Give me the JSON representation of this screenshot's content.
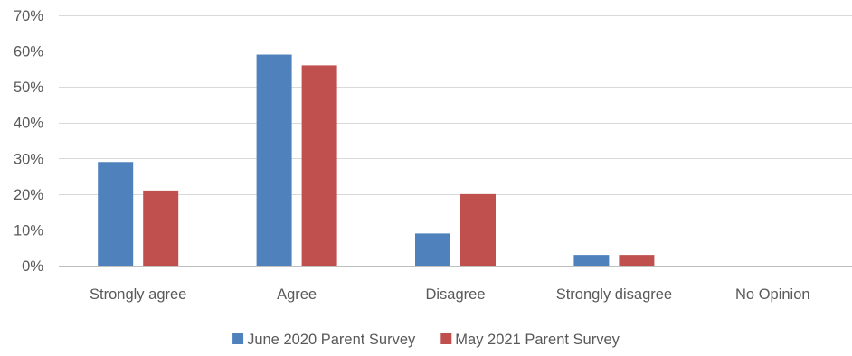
{
  "chart_data": {
    "type": "bar",
    "title": "",
    "xlabel": "",
    "ylabel": "",
    "categories": [
      "Strongly agree",
      "Agree",
      "Disagree",
      "Strongly disagree",
      "No Opinion"
    ],
    "series": [
      {
        "name": "June 2020 Parent Survey",
        "color": "#4F81BD",
        "values": [
          29,
          59,
          9,
          3,
          0
        ]
      },
      {
        "name": "May 2021 Parent Survey",
        "color": "#C0504D",
        "values": [
          21,
          56,
          20,
          3,
          0
        ]
      }
    ],
    "ylim": [
      0,
      70
    ],
    "yticks": [
      0,
      10,
      20,
      30,
      40,
      50,
      60,
      70
    ],
    "ytick_labels": [
      "0%",
      "10%",
      "20%",
      "30%",
      "40%",
      "50%",
      "60%",
      "70%"
    ],
    "grid": true,
    "legend_position": "bottom"
  }
}
